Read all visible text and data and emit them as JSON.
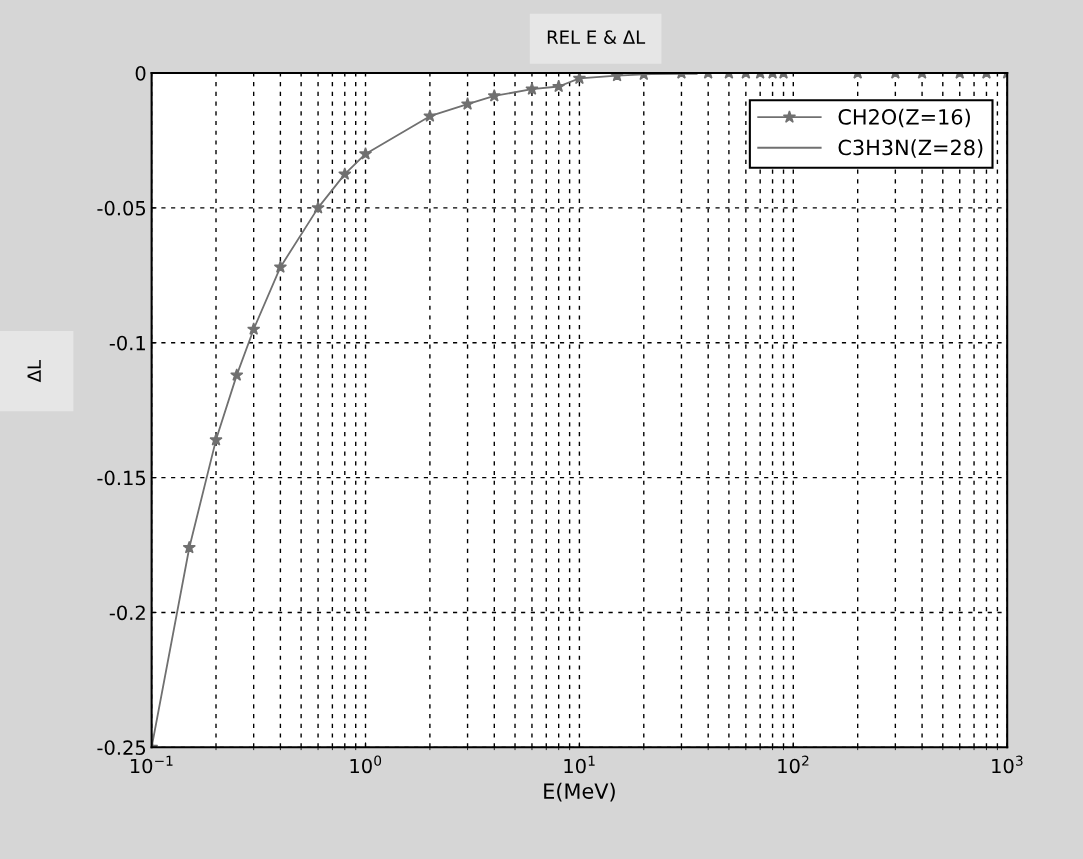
{
  "chart_data": {
    "type": "line",
    "title": "REL E & ΔL",
    "xlabel": "E(MeV)",
    "ylabel": "ΔL",
    "log": "x",
    "grid": true,
    "legend": "top right",
    "xlim": [
      0.1,
      1000
    ],
    "ylim": [
      -0.25,
      0
    ],
    "xticks": [
      {
        "value": 0.1,
        "label": "10$^{−1}$"
      },
      {
        "value": 1,
        "label": "10$^{0}$"
      },
      {
        "value": 10,
        "label": "10$^{1}$"
      },
      {
        "value": 100,
        "label": "10$^{2}$"
      },
      {
        "value": 1000,
        "label": "10$^{3}$"
      }
    ],
    "yticks": [
      0,
      -0.05,
      -0.1,
      -0.15,
      -0.2,
      -0.25
    ],
    "series": [
      {
        "name": "CH2O(Z=16)",
        "color": "#707070",
        "marker": "star",
        "x": [
          0.1,
          0.15,
          0.2,
          0.25,
          0.3,
          0.4,
          0.6,
          0.8,
          1,
          2,
          3,
          4,
          6,
          8,
          10,
          15,
          20,
          30,
          40,
          50,
          60,
          70,
          80,
          90,
          200,
          300,
          400,
          600,
          800,
          1000
        ],
        "values": [
          -0.25,
          -0.176,
          -0.136,
          -0.112,
          -0.095,
          -0.072,
          -0.05,
          -0.0375,
          -0.03,
          -0.016,
          -0.0115,
          -0.0085,
          -0.006,
          -0.005,
          -0.002,
          -0.001,
          -0.0005,
          0,
          0,
          0,
          0,
          0,
          0,
          0,
          0,
          0,
          0,
          0,
          0,
          0
        ]
      },
      {
        "name": "C3H3N(Z=28)",
        "color": "#707070",
        "marker": "none",
        "x": [
          20,
          35
        ],
        "values": [
          0,
          0
        ]
      }
    ]
  }
}
